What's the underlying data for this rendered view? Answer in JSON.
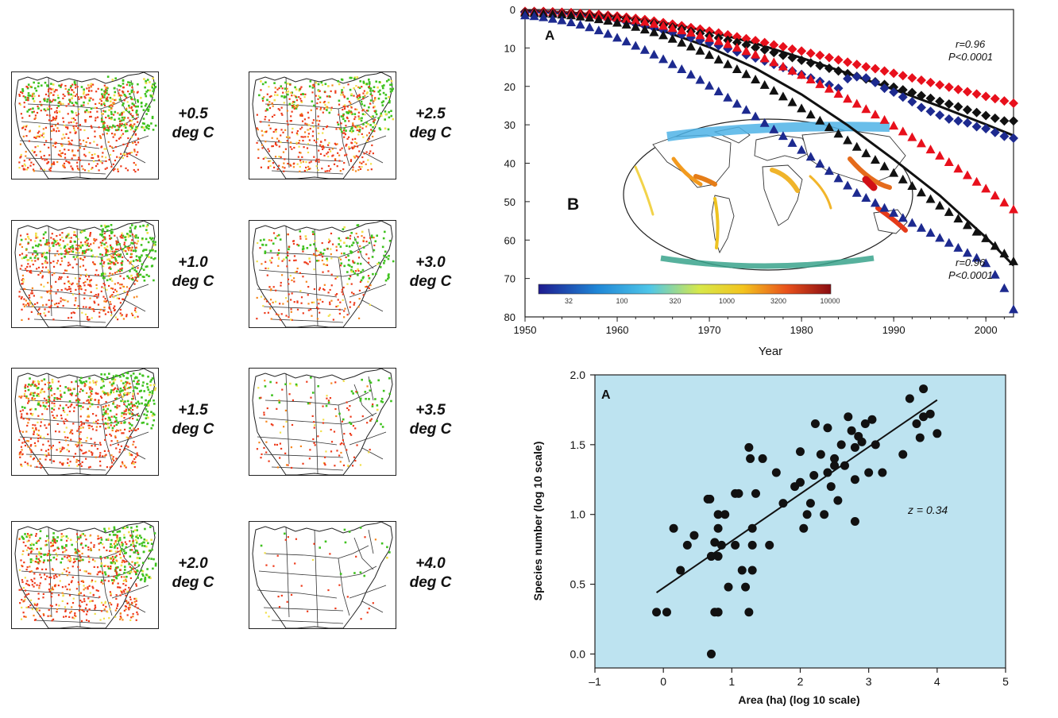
{
  "maps": {
    "panels": [
      {
        "label_line1": "+0.5",
        "label_line2": "deg C",
        "green": 0.95,
        "red": 1.0
      },
      {
        "label_line1": "+2.5",
        "label_line2": "deg C",
        "green": 0.75,
        "red": 0.85
      },
      {
        "label_line1": "+1.0",
        "label_line2": "deg C",
        "green": 0.95,
        "red": 1.0
      },
      {
        "label_line1": "+3.0",
        "label_line2": "deg C",
        "green": 0.45,
        "red": 0.45
      },
      {
        "label_line1": "+1.5",
        "label_line2": "deg C",
        "green": 0.95,
        "red": 1.0
      },
      {
        "label_line1": "+3.5",
        "label_line2": "deg C",
        "green": 0.18,
        "red": 0.22
      },
      {
        "label_line1": "+2.0",
        "label_line2": "deg C",
        "green": 0.9,
        "red": 0.95
      },
      {
        "label_line1": "+4.0",
        "label_line2": "deg C",
        "green": 0.06,
        "red": 0.06
      }
    ],
    "colors": {
      "green": "#3fc21f",
      "red": "#ee3a1a",
      "yellow": "#f1e04a",
      "orange": "#f7861c"
    }
  },
  "chart_data": [
    {
      "type": "scatter",
      "panel_label": "A",
      "inset_label": "B",
      "xlabel": "Year",
      "ylabel": "",
      "xlim": [
        1950,
        2003
      ],
      "ylim": [
        80,
        0
      ],
      "xticks": [
        "1950",
        "1960",
        "1970",
        "1980",
        "1990",
        "2000"
      ],
      "yticks": [
        "0",
        "10",
        "20",
        "30",
        "40",
        "50",
        "60",
        "70",
        "80"
      ],
      "annotations": [
        {
          "r": "r=0.96",
          "p": "P<0.0001"
        },
        {
          "r": "r=0.96",
          "p": "P<0.0001"
        }
      ],
      "colorbar_ticks": [
        "32",
        "100",
        "320",
        "1000",
        "3200",
        "10000"
      ],
      "colors": {
        "red": "#e8101c",
        "black": "#111111",
        "blue": "#1d2a8f",
        "fit": "#111111"
      },
      "series": [
        {
          "marker": "diamond",
          "color": "red",
          "x": [
            1950,
            1951,
            1952,
            1953,
            1954,
            1955,
            1956,
            1957,
            1958,
            1959,
            1960,
            1961,
            1962,
            1963,
            1964,
            1965,
            1966,
            1967,
            1968,
            1969,
            1970,
            1971,
            1972,
            1973,
            1974,
            1975,
            1976,
            1977,
            1978,
            1979,
            1980,
            1981,
            1982,
            1983,
            1984,
            1985,
            1986,
            1987,
            1988,
            1989,
            1990,
            1991,
            1992,
            1993,
            1994,
            1995,
            1996,
            1997,
            1998,
            1999,
            2000,
            2001,
            2002,
            2003
          ],
          "y": [
            0.5,
            0.5,
            0.5,
            0.6,
            0.7,
            0.8,
            1.0,
            1.1,
            1.3,
            1.5,
            1.7,
            2.0,
            2.3,
            2.6,
            3.0,
            3.4,
            3.8,
            4.2,
            4.7,
            5.1,
            5.6,
            6.1,
            6.6,
            7.1,
            7.6,
            8.1,
            8.6,
            9.2,
            9.7,
            10.3,
            10.8,
            11.4,
            11.9,
            12.5,
            13.1,
            13.7,
            14.3,
            14.9,
            15.4,
            16.0,
            16.6,
            17.2,
            17.8,
            18.4,
            19.0,
            19.6,
            20.2,
            20.8,
            21.4,
            22.0,
            22.6,
            23.2,
            23.8,
            24.4
          ]
        },
        {
          "marker": "diamond",
          "color": "black",
          "x": [
            1950,
            1951,
            1952,
            1953,
            1954,
            1955,
            1956,
            1957,
            1958,
            1959,
            1960,
            1961,
            1962,
            1963,
            1964,
            1965,
            1966,
            1967,
            1968,
            1969,
            1970,
            1971,
            1972,
            1973,
            1974,
            1975,
            1976,
            1977,
            1978,
            1979,
            1980,
            1981,
            1982,
            1983,
            1984,
            1985,
            1986,
            1987,
            1988,
            1989,
            1990,
            1991,
            1992,
            1993,
            1994,
            1995,
            1996,
            1997,
            1998,
            1999,
            2000,
            2001,
            2002,
            2003
          ],
          "y": [
            0.6,
            0.6,
            0.7,
            0.8,
            0.9,
            1.0,
            1.2,
            1.4,
            1.6,
            1.8,
            2.1,
            2.4,
            2.8,
            3.2,
            3.6,
            4.1,
            4.6,
            5.1,
            5.7,
            6.2,
            6.8,
            7.4,
            8.0,
            8.6,
            9.2,
            9.9,
            10.5,
            11.2,
            11.9,
            12.5,
            13.2,
            13.9,
            14.6,
            15.3,
            16.0,
            16.7,
            17.4,
            18.1,
            18.8,
            19.5,
            20.2,
            20.9,
            21.6,
            22.4,
            23.1,
            23.9,
            24.6,
            25.3,
            26.1,
            26.8,
            27.6,
            28.3,
            29.0,
            29.0
          ]
        },
        {
          "marker": "diamond",
          "color": "blue",
          "x": [
            1950,
            1951,
            1952,
            1953,
            1954,
            1955,
            1956,
            1957,
            1958,
            1959,
            1960,
            1961,
            1962,
            1963,
            1964,
            1965,
            1966,
            1967,
            1968,
            1969,
            1970,
            1971,
            1972,
            1973,
            1974,
            1975,
            1976,
            1977,
            1978,
            1979,
            1980,
            1981,
            1982,
            1983,
            1984,
            1985,
            1986,
            1987,
            1988,
            1989,
            1990,
            1991,
            1992,
            1993,
            1994,
            1995,
            1996,
            1997,
            1998,
            1999,
            2000,
            2001,
            2002,
            2003
          ],
          "y": [
            0.8,
            0.8,
            0.9,
            1.0,
            1.2,
            1.4,
            1.6,
            1.9,
            2.2,
            2.5,
            2.9,
            3.3,
            3.8,
            4.3,
            4.8,
            5.4,
            6.0,
            6.6,
            7.3,
            8.0,
            8.7,
            9.4,
            10.2,
            11.0,
            11.8,
            12.6,
            13.4,
            14.3,
            15.1,
            16.0,
            16.9,
            17.8,
            18.7,
            19.6,
            20.5,
            18.0,
            17.5,
            17.8,
            19.0,
            20.5,
            21.5,
            22.8,
            24.0,
            25.5,
            26.5,
            27.5,
            28.5,
            29.0,
            29.5,
            30.5,
            31.0,
            32.0,
            33.0,
            33.5
          ]
        },
        {
          "marker": "triangle",
          "color": "red",
          "x": [
            1950,
            1951,
            1952,
            1953,
            1954,
            1955,
            1956,
            1957,
            1958,
            1959,
            1960,
            1961,
            1962,
            1963,
            1964,
            1965,
            1966,
            1967,
            1968,
            1969,
            1970,
            1971,
            1972,
            1973,
            1974,
            1975,
            1976,
            1977,
            1978,
            1979,
            1980,
            1981,
            1982,
            1983,
            1984,
            1985,
            1986,
            1987,
            1988,
            1989,
            1990,
            1991,
            1992,
            1993,
            1994,
            1995,
            1996,
            1997,
            1998,
            1999,
            2000,
            2001,
            2002,
            2003
          ],
          "y": [
            0.5,
            0.5,
            0.6,
            0.7,
            0.8,
            0.9,
            1.1,
            1.3,
            1.5,
            1.8,
            2.1,
            2.4,
            2.8,
            3.2,
            3.7,
            4.2,
            4.8,
            5.4,
            6.0,
            6.7,
            7.4,
            8.2,
            9.0,
            9.9,
            10.8,
            11.7,
            12.7,
            13.7,
            14.8,
            15.9,
            17.0,
            18.2,
            19.4,
            20.6,
            21.9,
            23.2,
            24.5,
            25.9,
            27.3,
            28.7,
            30.2,
            31.7,
            33.2,
            34.8,
            36.4,
            38.0,
            39.7,
            41.4,
            43.1,
            44.8,
            46.6,
            48.4,
            50.2,
            52.0
          ]
        },
        {
          "marker": "triangle",
          "color": "black",
          "x": [
            1950,
            1951,
            1952,
            1953,
            1954,
            1955,
            1956,
            1957,
            1958,
            1959,
            1960,
            1961,
            1962,
            1963,
            1964,
            1965,
            1966,
            1967,
            1968,
            1969,
            1970,
            1971,
            1972,
            1973,
            1974,
            1975,
            1976,
            1977,
            1978,
            1979,
            1980,
            1981,
            1982,
            1983,
            1984,
            1985,
            1986,
            1987,
            1988,
            1989,
            1990,
            1991,
            1992,
            1993,
            1994,
            1995,
            1996,
            1997,
            1998,
            1999,
            2000,
            2001,
            2002,
            2003
          ],
          "y": [
            0.8,
            0.9,
            1.0,
            1.1,
            1.3,
            1.5,
            1.8,
            2.1,
            2.5,
            2.9,
            3.4,
            3.9,
            4.5,
            5.2,
            5.9,
            6.7,
            7.6,
            8.6,
            9.6,
            10.7,
            11.8,
            13.0,
            14.2,
            15.5,
            16.8,
            18.2,
            19.6,
            21.1,
            22.6,
            24.1,
            25.7,
            27.3,
            28.9,
            30.6,
            32.3,
            34.0,
            35.7,
            37.4,
            39.1,
            40.8,
            42.5,
            44.2,
            45.9,
            47.6,
            49.3,
            51.0,
            52.7,
            54.4,
            56.1,
            57.8,
            59.5,
            61.5,
            63.5,
            65.5
          ]
        },
        {
          "marker": "triangle",
          "color": "blue",
          "x": [
            1950,
            1951,
            1952,
            1953,
            1954,
            1955,
            1956,
            1957,
            1958,
            1959,
            1960,
            1961,
            1962,
            1963,
            1964,
            1965,
            1966,
            1967,
            1968,
            1969,
            1970,
            1971,
            1972,
            1973,
            1974,
            1975,
            1976,
            1977,
            1978,
            1979,
            1980,
            1981,
            1982,
            1983,
            1984,
            1985,
            1986,
            1987,
            1988,
            1989,
            1990,
            1991,
            1992,
            1993,
            1994,
            1995,
            1996,
            1997,
            1998,
            1999,
            2000,
            2001,
            2002,
            2003
          ],
          "y": [
            1.5,
            1.7,
            2.0,
            2.4,
            2.8,
            3.3,
            3.9,
            4.6,
            5.4,
            6.3,
            7.3,
            8.3,
            9.4,
            10.5,
            11.7,
            12.9,
            14.2,
            15.5,
            16.9,
            18.3,
            19.8,
            21.3,
            22.9,
            24.5,
            26.1,
            27.8,
            29.5,
            31.2,
            32.9,
            34.7,
            36.5,
            38.3,
            40.1,
            42.0,
            43.9,
            45.8,
            47.7,
            49.0,
            50.3,
            51.6,
            52.9,
            54.2,
            55.5,
            56.8,
            58.1,
            59.4,
            60.7,
            62.0,
            63.3,
            64.6,
            66.0,
            69.0,
            72.5,
            78.0
          ]
        }
      ],
      "fit_lines": [
        {
          "x": [
            1950,
            1955,
            1960,
            1965,
            1970,
            1975,
            1980,
            1985,
            1990,
            1995,
            2000,
            2003
          ],
          "y": [
            0.3,
            0.8,
            1.8,
            3.4,
            5.7,
            8.8,
            12.6,
            16.6,
            20.8,
            25.2,
            29.9,
            32.8
          ]
        },
        {
          "x": [
            1950,
            1955,
            1960,
            1965,
            1970,
            1975,
            1980,
            1985,
            1990,
            1995,
            2000,
            2003
          ],
          "y": [
            0.3,
            1.0,
            2.7,
            5.6,
            9.8,
            15.3,
            22.1,
            30.1,
            39.0,
            48.4,
            59.3,
            66.6
          ]
        }
      ]
    },
    {
      "type": "scatter",
      "panel_label": "A",
      "xlabel": "Area (ha) (log 10 scale)",
      "ylabel": "Species number (log 10 scale)",
      "xlim": [
        -1,
        5
      ],
      "ylim": [
        -0.1,
        2.0
      ],
      "xticks": [
        "–1",
        "0",
        "1",
        "2",
        "3",
        "4",
        "5"
      ],
      "yticks": [
        "0.0",
        "0.5",
        "1.0",
        "1.5",
        "2.0"
      ],
      "annotation": "z = 0.34",
      "background": "#bde3f0",
      "marker_color": "#111111",
      "fit": {
        "x": [
          -0.1,
          4.0
        ],
        "y": [
          0.44,
          1.82
        ]
      },
      "x": [
        -0.1,
        0.05,
        0.15,
        0.25,
        0.35,
        0.45,
        0.65,
        0.7,
        0.75,
        0.8,
        0.85,
        0.8,
        0.95,
        1.05,
        1.15,
        1.2,
        1.25,
        1.27,
        1.3,
        1.3,
        1.35,
        1.45,
        1.55,
        1.65,
        1.75,
        1.92,
        2.0,
        2.0,
        2.05,
        2.1,
        2.15,
        2.2,
        2.22,
        2.3,
        2.35,
        2.4,
        2.4,
        2.45,
        2.5,
        2.5,
        2.55,
        2.6,
        2.65,
        2.7,
        2.75,
        2.8,
        2.8,
        2.85,
        2.9,
        2.95,
        3.0,
        3.05,
        3.1,
        3.2,
        3.5,
        3.6,
        3.7,
        3.75,
        3.8,
        3.8,
        3.9,
        4.0,
        0.7,
        0.75,
        0.8,
        0.8,
        0.9,
        1.05,
        1.25,
        0.68,
        0.8,
        2.8,
        0.7,
        1.1,
        1.3
      ],
      "y": [
        0.3,
        0.3,
        0.9,
        0.6,
        0.78,
        0.85,
        1.11,
        0.7,
        0.3,
        0.9,
        0.78,
        0.3,
        0.48,
        0.78,
        0.6,
        0.48,
        1.48,
        1.4,
        0.78,
        0.9,
        1.15,
        1.4,
        0.78,
        1.3,
        1.08,
        1.2,
        1.45,
        1.23,
        0.9,
        1.0,
        1.08,
        1.28,
        1.65,
        1.43,
        1.0,
        1.3,
        1.62,
        1.2,
        1.35,
        1.4,
        1.1,
        1.5,
        1.35,
        1.7,
        1.6,
        1.48,
        1.25,
        1.56,
        1.52,
        1.65,
        1.3,
        1.68,
        1.5,
        1.3,
        1.43,
        1.83,
        1.65,
        1.55,
        1.9,
        1.7,
        1.72,
        1.58,
        0.0,
        0.8,
        0.3,
        1.0,
        1.0,
        1.15,
        0.3,
        1.11,
        0.7,
        0.95,
        0.7,
        1.15,
        0.6
      ]
    }
  ]
}
